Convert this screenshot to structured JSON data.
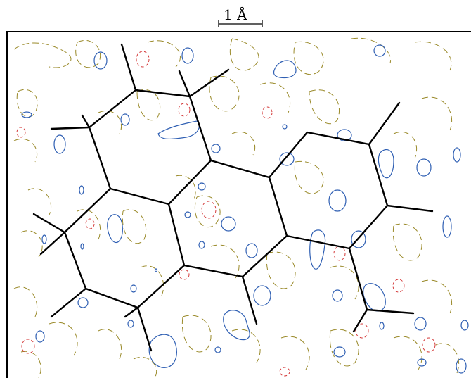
{
  "figure": {
    "scale_bar_label": "1 Å",
    "contour_colors": {
      "positive": "#2f5fb3",
      "negative": "#d43a3a",
      "zero": "#9a8a2a"
    },
    "bond_color": "#000000"
  }
}
